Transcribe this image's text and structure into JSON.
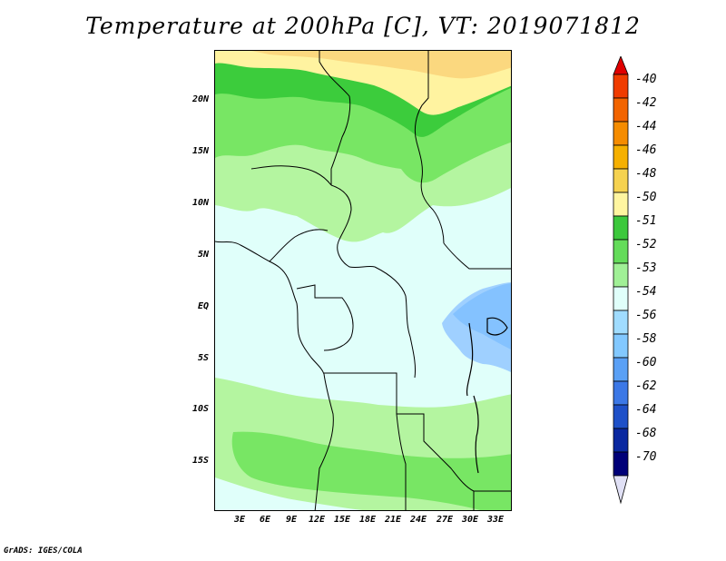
{
  "title": "Temperature at 200hPa [C], VT: 2019071812",
  "footer": "GrADS: IGES/COLA",
  "map": {
    "variable": "Temperature at 200hPa",
    "units": "C",
    "valid_time": "2019071812",
    "lat_labels": [
      "20N",
      "15N",
      "10N",
      "5N",
      "EQ",
      "5S",
      "10S",
      "15S"
    ],
    "lon_labels": [
      "3E",
      "6E",
      "9E",
      "12E",
      "15E",
      "18E",
      "21E",
      "24E",
      "27E",
      "30E",
      "33E"
    ]
  },
  "colorbar": {
    "levels": [
      "-40",
      "-42",
      "-44",
      "-46",
      "-48",
      "-50",
      "-51",
      "-52",
      "-53",
      "-54",
      "-56",
      "-58",
      "-60",
      "-62",
      "-64",
      "-68",
      "-70"
    ],
    "colors": [
      "#e00000",
      "#f03c00",
      "#f26400",
      "#f58c00",
      "#f5b000",
      "#f5d250",
      "#fff5a0",
      "#3cc83c",
      "#64dc5a",
      "#a0f096",
      "#e0fffa",
      "#a0dcff",
      "#82c8ff",
      "#5aa0f5",
      "#3c78e6",
      "#1e50c8",
      "#0a28a0",
      "#000078",
      "#e0e0f5"
    ]
  },
  "palette": {
    "yellow_dark": "#fbd87f",
    "yellow_light": "#fff3a0",
    "green_dark": "#3ccc3c",
    "green_mid": "#78e664",
    "green_light": "#b4f5a0",
    "cyan_light": "#e0fffa",
    "blue_light": "#9fd0ff",
    "blue_mid": "#84c2ff"
  }
}
